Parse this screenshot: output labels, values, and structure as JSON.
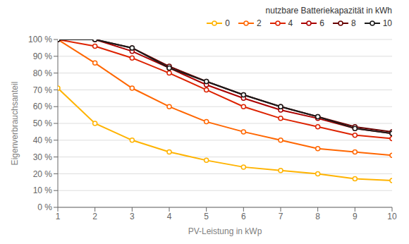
{
  "chart_data": {
    "type": "line",
    "title": "nutzbare Batteriekapazität in kWh",
    "xlabel": "PV-Leistung in kWp",
    "ylabel": "Eigenverbrauchsanteil",
    "x": [
      1,
      2,
      3,
      4,
      5,
      6,
      7,
      8,
      9,
      10
    ],
    "series": [
      {
        "name": "0",
        "color": "#FFB300",
        "values": [
          71,
          50,
          40,
          33,
          28,
          24,
          22,
          20,
          17,
          16
        ]
      },
      {
        "name": "2",
        "color": "#FF6600",
        "values": [
          100,
          86,
          71,
          60,
          51,
          45,
          40,
          35,
          33,
          31
        ]
      },
      {
        "name": "4",
        "color": "#DD2200",
        "values": [
          100,
          96,
          89,
          80,
          70,
          60,
          53,
          48,
          43,
          41
        ]
      },
      {
        "name": "6",
        "color": "#AA0000",
        "values": [
          100,
          100,
          93,
          83,
          73,
          65,
          58,
          53,
          47,
          44
        ]
      },
      {
        "name": "8",
        "color": "#660000",
        "values": [
          100,
          100,
          95,
          84,
          75,
          67,
          60,
          54,
          48,
          45
        ]
      },
      {
        "name": "10",
        "color": "#1a1a1a",
        "values": [
          100,
          100,
          95,
          83,
          75,
          67,
          60,
          54,
          47,
          44
        ]
      }
    ],
    "marker": "circle",
    "xlim": [
      1,
      10
    ],
    "ylim": [
      0,
      100
    ],
    "xticks": [
      1,
      2,
      3,
      4,
      5,
      6,
      7,
      8,
      9,
      10
    ],
    "yticks": [
      {
        "value": 0,
        "label": "0 %"
      },
      {
        "value": 10,
        "label": "10 %"
      },
      {
        "value": 20,
        "label": "20 %"
      },
      {
        "value": 30,
        "label": "30 %"
      },
      {
        "value": 40,
        "label": "40 %"
      },
      {
        "value": 50,
        "label": "50 %"
      },
      {
        "value": 60,
        "label": "60 %"
      },
      {
        "value": 70,
        "label": "70 %"
      },
      {
        "value": 80,
        "label": "80 %"
      },
      {
        "value": 90,
        "label": "90 %"
      },
      {
        "value": 100,
        "label": "100 %"
      }
    ],
    "grid": true,
    "legend": "upper right"
  }
}
